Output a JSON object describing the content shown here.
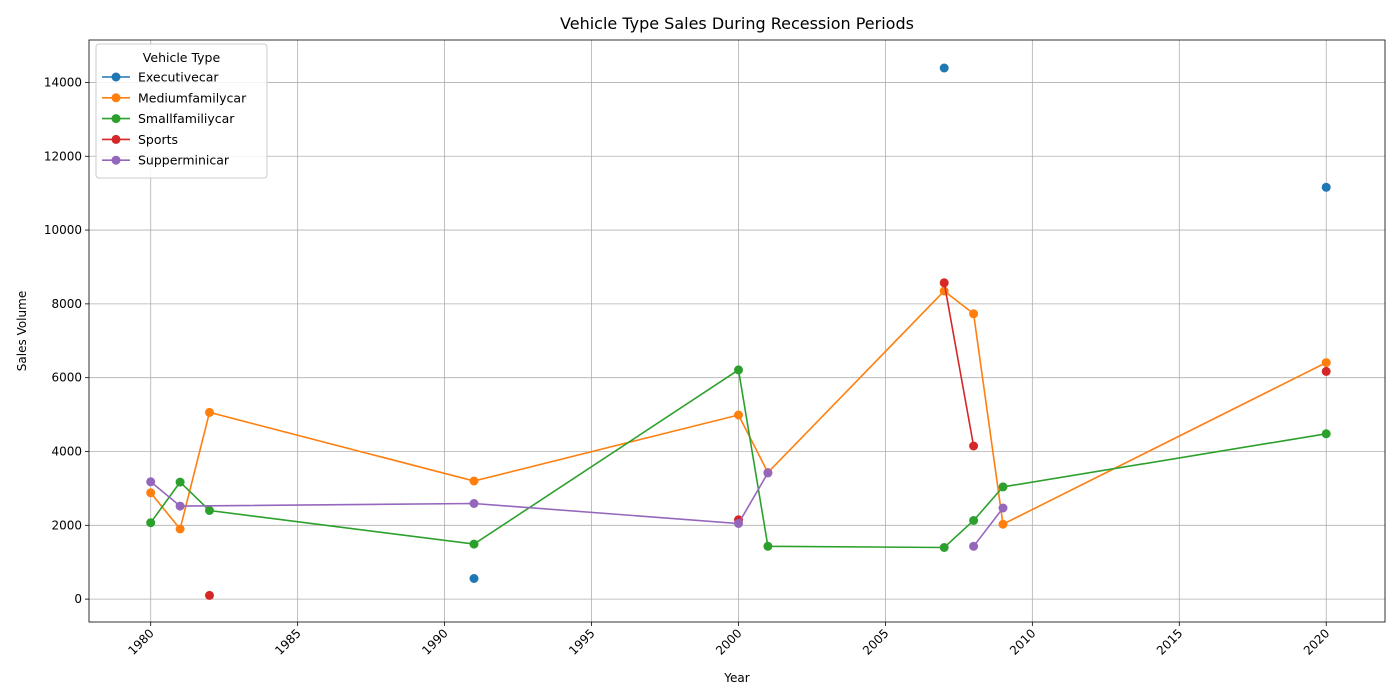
{
  "chart_data": {
    "type": "line",
    "title": "Vehicle Type Sales During Recession Periods",
    "xlabel": "Year",
    "ylabel": "Sales Volume",
    "xlim": [
      1977.9,
      2022
    ],
    "ylim": [
      -620,
      15150
    ],
    "xticks": [
      1980,
      1985,
      1990,
      1995,
      2000,
      2005,
      2010,
      2015,
      2020
    ],
    "yticks": [
      0,
      2000,
      4000,
      6000,
      8000,
      10000,
      12000,
      14000
    ],
    "grid": true,
    "legend": {
      "title": "Vehicle Type",
      "position": "top-left"
    },
    "series": [
      {
        "name": "Executivecar",
        "color": "#1f77b4",
        "points": [
          [
            1991,
            560
          ],
          [
            2007,
            14390
          ],
          [
            2020,
            11160
          ]
        ]
      },
      {
        "name": "Mediumfamilycar",
        "color": "#ff7f0e",
        "points": [
          [
            1980,
            2880
          ],
          [
            1981,
            1900
          ],
          [
            1982,
            5060
          ],
          [
            1991,
            3200
          ],
          [
            2000,
            4990
          ],
          [
            2001,
            3430
          ],
          [
            2007,
            8350
          ],
          [
            2008,
            7730
          ],
          [
            2009,
            2030
          ],
          [
            2020,
            6410
          ]
        ]
      },
      {
        "name": "Smallfamiliycar",
        "color": "#2ca02c",
        "points": [
          [
            1980,
            2070
          ],
          [
            1981,
            3170
          ],
          [
            1982,
            2400
          ],
          [
            1991,
            1490
          ],
          [
            2000,
            6210
          ],
          [
            2001,
            1430
          ],
          [
            2007,
            1400
          ],
          [
            2008,
            2130
          ],
          [
            2009,
            3040
          ],
          [
            2020,
            4480
          ]
        ]
      },
      {
        "name": "Sports",
        "color": "#d62728",
        "points": [
          [
            1982,
            100
          ],
          [
            2000,
            2150
          ],
          [
            2007,
            8570
          ],
          [
            2008,
            4150
          ],
          [
            2020,
            6170
          ]
        ]
      },
      {
        "name": "Supperminicar",
        "color": "#9467bd",
        "points": [
          [
            1980,
            3180
          ],
          [
            1981,
            2520
          ],
          [
            1991,
            2590
          ],
          [
            2000,
            2050
          ],
          [
            2001,
            3420
          ],
          [
            2008,
            1430
          ],
          [
            2009,
            2470
          ]
        ]
      }
    ]
  }
}
